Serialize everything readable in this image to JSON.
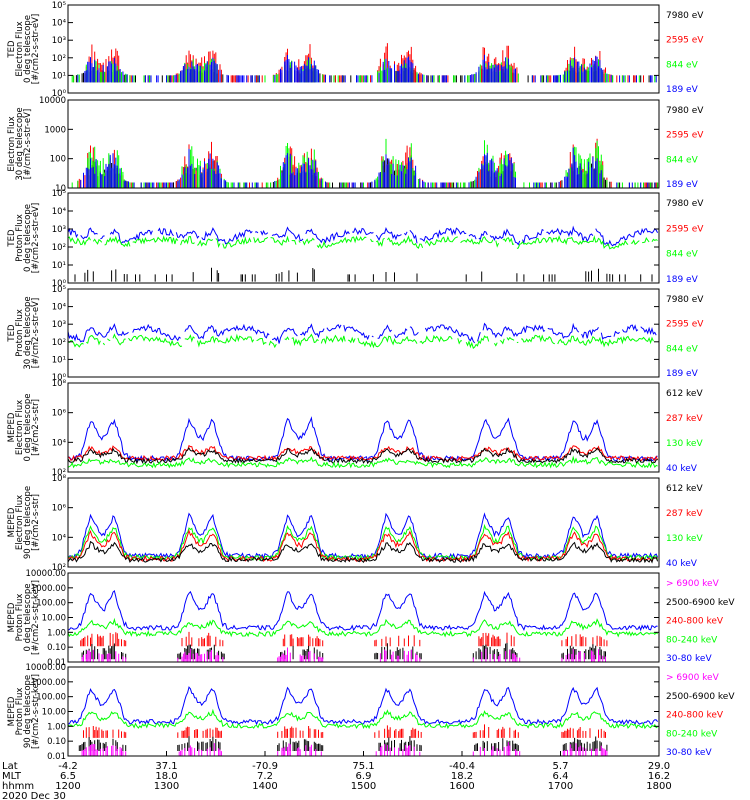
{
  "colors": {
    "blue": "#0000ff",
    "red": "#ff0000",
    "green": "#00ff00",
    "black": "#000000",
    "magenta": "#ff00ff"
  },
  "panels": [
    {
      "ylabel": [
        "TED",
        "Electron Flux",
        "0 deg telescope",
        "[#/cm2-s-str-eV]"
      ],
      "ticks": [
        "10⁵",
        "10⁴",
        "10³",
        "10²",
        "10¹",
        "10⁰"
      ],
      "legend": [
        {
          "text": "7980 eV",
          "color": "black"
        },
        {
          "text": "2595 eV",
          "color": "red"
        },
        {
          "text": "844 eV",
          "color": "green"
        },
        {
          "text": "189 eV",
          "color": "blue"
        }
      ]
    },
    {
      "ylabel": [
        "Electron Flux",
        "30 deg telescope",
        "[#/cm2-s-str-eV]"
      ],
      "ticks": [
        "10000",
        "1000",
        "100",
        "10"
      ],
      "legend": [
        {
          "text": "7980 eV",
          "color": "black"
        },
        {
          "text": "2595 eV",
          "color": "red"
        },
        {
          "text": "844 eV",
          "color": "green"
        },
        {
          "text": "189 eV",
          "color": "blue"
        }
      ]
    },
    {
      "ylabel": [
        "TED",
        "Proton Flux",
        "0 deg telescope",
        "[#/cm2-s-str-eV]"
      ],
      "ticks": [
        "10⁵",
        "10⁴",
        "10³",
        "10²",
        "10¹",
        "10⁰"
      ],
      "legend": [
        {
          "text": "7980 eV",
          "color": "black"
        },
        {
          "text": "2595 eV",
          "color": "red"
        },
        {
          "text": "844 eV",
          "color": "green"
        },
        {
          "text": "189 eV",
          "color": "blue"
        }
      ]
    },
    {
      "ylabel": [
        "TED",
        "Proton Flux",
        "30 deg telescope",
        "[#/cm2-s-str-eV]"
      ],
      "ticks": [
        "10⁵",
        "10⁴",
        "10³",
        "10²",
        "10¹",
        "10⁰"
      ],
      "legend": [
        {
          "text": "7980 eV",
          "color": "black"
        },
        {
          "text": "2595 eV",
          "color": "red"
        },
        {
          "text": "844 eV",
          "color": "green"
        },
        {
          "text": "189 eV",
          "color": "blue"
        }
      ]
    },
    {
      "ylabel": [
        "MEPED",
        "Electron Flux",
        "0 deg telescope",
        "[#/cm2-s-str]"
      ],
      "ticks": [
        "10⁸",
        "10⁶",
        "10⁴",
        "10²"
      ],
      "legend": [
        {
          "text": "612 keV",
          "color": "black"
        },
        {
          "text": "287 keV",
          "color": "red"
        },
        {
          "text": "130 keV",
          "color": "green"
        },
        {
          "text": "40 keV",
          "color": "blue"
        }
      ]
    },
    {
      "ylabel": [
        "MEPED",
        "Electron Flux",
        "90 deg telescope",
        "[#/cm2-s-str]"
      ],
      "ticks": [
        "10⁸",
        "10⁶",
        "10⁴",
        "10²"
      ],
      "legend": [
        {
          "text": "612 keV",
          "color": "black"
        },
        {
          "text": "287 keV",
          "color": "red"
        },
        {
          "text": "130 keV",
          "color": "green"
        },
        {
          "text": "40 keV",
          "color": "blue"
        }
      ]
    },
    {
      "ylabel": [
        "MEPED",
        "Proton Flux",
        "0 deg telescope",
        "[#/cm2-s-str-keV]"
      ],
      "ticks": [
        "10000.00",
        "1000.00",
        "100.00",
        "10.00",
        "1.00",
        "0.10",
        "0.01"
      ],
      "legend": [
        {
          "text": "> 6900 keV",
          "color": "magenta"
        },
        {
          "text": "2500-6900 keV",
          "color": "black"
        },
        {
          "text": "240-800 keV",
          "color": "red"
        },
        {
          "text": "80-240 keV",
          "color": "green"
        },
        {
          "text": "30-80 keV",
          "color": "blue"
        }
      ]
    },
    {
      "ylabel": [
        "MEPED",
        "Proton Flux",
        "90 deg telescope",
        "[#/cm2-s-str-keV]"
      ],
      "ticks": [
        "10000.00",
        "1000.00",
        "100.00",
        "10.00",
        "1.00",
        "0.10",
        "0.01"
      ],
      "legend": [
        {
          "text": "> 6900 keV",
          "color": "magenta"
        },
        {
          "text": "2500-6900 keV",
          "color": "black"
        },
        {
          "text": "240-800 keV",
          "color": "red"
        },
        {
          "text": "80-240 keV",
          "color": "green"
        },
        {
          "text": "30-80 keV",
          "color": "blue"
        }
      ]
    }
  ],
  "xaxis": {
    "row_labels": [
      "Lat",
      "MLT",
      "hhmm"
    ],
    "lat": [
      "-4.2",
      "37.1",
      "-70.9",
      "75.1",
      "-40.4",
      "5.7",
      "29.0"
    ],
    "mlt": [
      "6.5",
      "18.0",
      "7.2",
      "6.9",
      "18.2",
      "6.4",
      "16.2"
    ],
    "hhmm": [
      "1200",
      "1300",
      "1400",
      "1500",
      "1600",
      "1700",
      "1800"
    ],
    "date": "2020 Dec 30"
  },
  "chart_data": {
    "type": "line",
    "x_unit": "UT hhmm",
    "x_range": [
      "1200",
      "1800"
    ],
    "x_ticks": [
      "1200",
      "1300",
      "1400",
      "1500",
      "1600",
      "1700",
      "1800"
    ],
    "date": "2020 Dec 30",
    "note_time_axis": "hours after 12:00 UT",
    "panels": [
      {
        "y_scale": "log",
        "ylim": [
          1,
          100000
        ],
        "series": [
          {
            "name": "7980 eV",
            "color": "black",
            "mode": "bursty",
            "base": 10,
            "peak": 50
          },
          {
            "name": "2595 eV",
            "color": "red",
            "mode": "bursty",
            "base": 10,
            "peak": 3000
          },
          {
            "name": "844 eV",
            "color": "green",
            "mode": "bursty",
            "base": 10,
            "peak": 300
          },
          {
            "name": "189 eV",
            "color": "blue",
            "mode": "bursty",
            "base": 10,
            "peak": 300
          }
        ]
      },
      {
        "y_scale": "log",
        "ylim": [
          3,
          10000
        ],
        "series": [
          {
            "name": "7980 eV",
            "color": "black",
            "mode": "bursty",
            "base": 5,
            "peak": 100
          },
          {
            "name": "2595 eV",
            "color": "red",
            "mode": "bursty",
            "base": 5,
            "peak": 800
          },
          {
            "name": "844 eV",
            "color": "green",
            "mode": "bursty",
            "base": 5,
            "peak": 1000
          },
          {
            "name": "189 eV",
            "color": "blue",
            "mode": "bursty",
            "base": 5,
            "peak": 300
          }
        ]
      },
      {
        "y_scale": "log",
        "ylim": [
          1,
          100000
        ],
        "series": [
          {
            "name": "189 eV",
            "color": "blue",
            "mode": "arcs",
            "base": 100,
            "peak": 3000
          },
          {
            "name": "844 eV",
            "color": "green",
            "mode": "arcs",
            "base": 80,
            "peak": 600
          },
          {
            "name": "7980 eV",
            "color": "black",
            "mode": "sparse",
            "base": 3,
            "peak": 10
          }
        ]
      },
      {
        "y_scale": "log",
        "ylim": [
          1,
          100000
        ],
        "series": [
          {
            "name": "189 eV",
            "color": "blue",
            "mode": "arcs",
            "base": 60,
            "peak": 3000
          },
          {
            "name": "844 eV",
            "color": "green",
            "mode": "arcs",
            "base": 40,
            "peak": 400
          }
        ]
      },
      {
        "y_scale": "log",
        "ylim": [
          30,
          100000000
        ],
        "series": [
          {
            "name": "40 keV",
            "color": "blue",
            "mode": "floor",
            "base": 300,
            "peak": 1000000
          },
          {
            "name": "287 keV",
            "color": "red",
            "mode": "floor",
            "base": 300,
            "peak": 3000
          },
          {
            "name": "612 keV",
            "color": "black",
            "mode": "floor",
            "base": 200,
            "peak": 2000
          },
          {
            "name": "130 keV",
            "color": "green",
            "mode": "floor",
            "base": 100,
            "peak": 300
          }
        ]
      },
      {
        "y_scale": "log",
        "ylim": [
          30,
          100000000
        ],
        "series": [
          {
            "name": "40 keV",
            "color": "blue",
            "mode": "humps",
            "base": 200,
            "peak": 1000000
          },
          {
            "name": "130 keV",
            "color": "green",
            "mode": "humps",
            "base": 150,
            "peak": 100000
          },
          {
            "name": "287 keV",
            "color": "red",
            "mode": "humps",
            "base": 120,
            "peak": 30000
          },
          {
            "name": "612 keV",
            "color": "black",
            "mode": "humps",
            "base": 100,
            "peak": 3000
          }
        ]
      },
      {
        "y_scale": "log",
        "ylim": [
          0.005,
          30000
        ],
        "series": [
          {
            "name": "30-80 keV",
            "color": "blue",
            "mode": "humps",
            "base": 2,
            "peak": 5000
          },
          {
            "name": "80-240 keV",
            "color": "green",
            "mode": "humps",
            "base": 0.7,
            "peak": 10
          },
          {
            "name": "240-800 keV",
            "color": "red",
            "mode": "spikes",
            "base": 0.2,
            "peak": 2
          },
          {
            "name": "2500-6900 keV",
            "color": "black",
            "mode": "spikes",
            "base": 0.02,
            "peak": 0.3
          },
          {
            "name": "> 6900 keV",
            "color": "magenta",
            "mode": "spikes",
            "base": 0.01,
            "peak": 0.1
          }
        ]
      },
      {
        "y_scale": "log",
        "ylim": [
          0.005,
          30000
        ],
        "series": [
          {
            "name": "30-80 keV",
            "color": "blue",
            "mode": "humps",
            "base": 2,
            "peak": 3000
          },
          {
            "name": "80-240 keV",
            "color": "green",
            "mode": "humps",
            "base": 1,
            "peak": 20
          },
          {
            "name": "240-800 keV",
            "color": "red",
            "mode": "spikes",
            "base": 0.3,
            "peak": 2
          },
          {
            "name": "2500-6900 keV",
            "color": "black",
            "mode": "spikes",
            "base": 0.03,
            "peak": 0.3
          },
          {
            "name": "> 6900 keV",
            "color": "magenta",
            "mode": "spikes",
            "base": 0.01,
            "peak": 0.1
          }
        ]
      }
    ],
    "pass_centers": [
      0.35,
      1.35,
      2.35,
      3.35,
      4.35,
      5.25
    ],
    "pass_half_width": 0.28
  }
}
